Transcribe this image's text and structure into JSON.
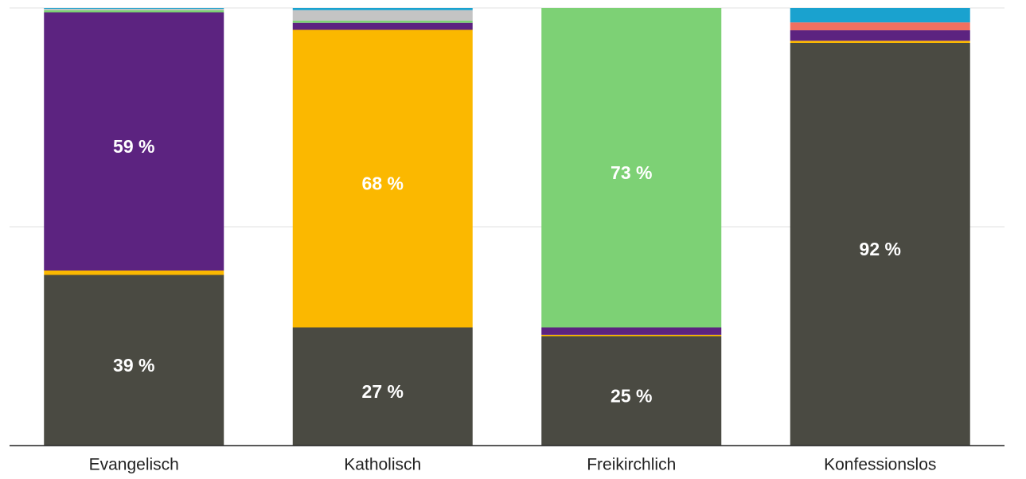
{
  "chart_data": {
    "type": "stacked_bar",
    "categories": [
      "Evangelisch",
      "Katholisch",
      "Freikirchlich",
      "Konfessionslos"
    ],
    "series": [
      {
        "color": "#4a4a42",
        "values": [
          39,
          27,
          25,
          92
        ],
        "value_labels": [
          "39 %",
          "27 %",
          "25 %",
          "92 %"
        ]
      },
      {
        "color": "#fbb800",
        "values": [
          1,
          68,
          0.3,
          0.5
        ],
        "value_labels": [
          null,
          "68 %",
          null,
          null
        ]
      },
      {
        "color": "#5c2380",
        "values": [
          59,
          1.6,
          1.7,
          2.4
        ],
        "value_labels": [
          "59 %",
          null,
          null,
          null
        ]
      },
      {
        "color": "#7dd175",
        "values": [
          0.5,
          0.5,
          73,
          0
        ],
        "value_labels": [
          null,
          null,
          "73 %",
          null
        ]
      },
      {
        "color": "#c4c4c4",
        "values": [
          0.3,
          2.4,
          0,
          0
        ],
        "value_labels": [
          null,
          null,
          null,
          null
        ]
      },
      {
        "color": "#f07060",
        "values": [
          0,
          0,
          0,
          1.8
        ],
        "value_labels": [
          null,
          null,
          null,
          null
        ]
      },
      {
        "color": "#1aa2cf",
        "values": [
          0.2,
          0.5,
          0,
          3.3
        ],
        "value_labels": [
          null,
          null,
          null,
          null
        ]
      }
    ],
    "ylim": [
      0,
      100
    ],
    "yticks": [
      0,
      50,
      100
    ],
    "grid": true
  }
}
